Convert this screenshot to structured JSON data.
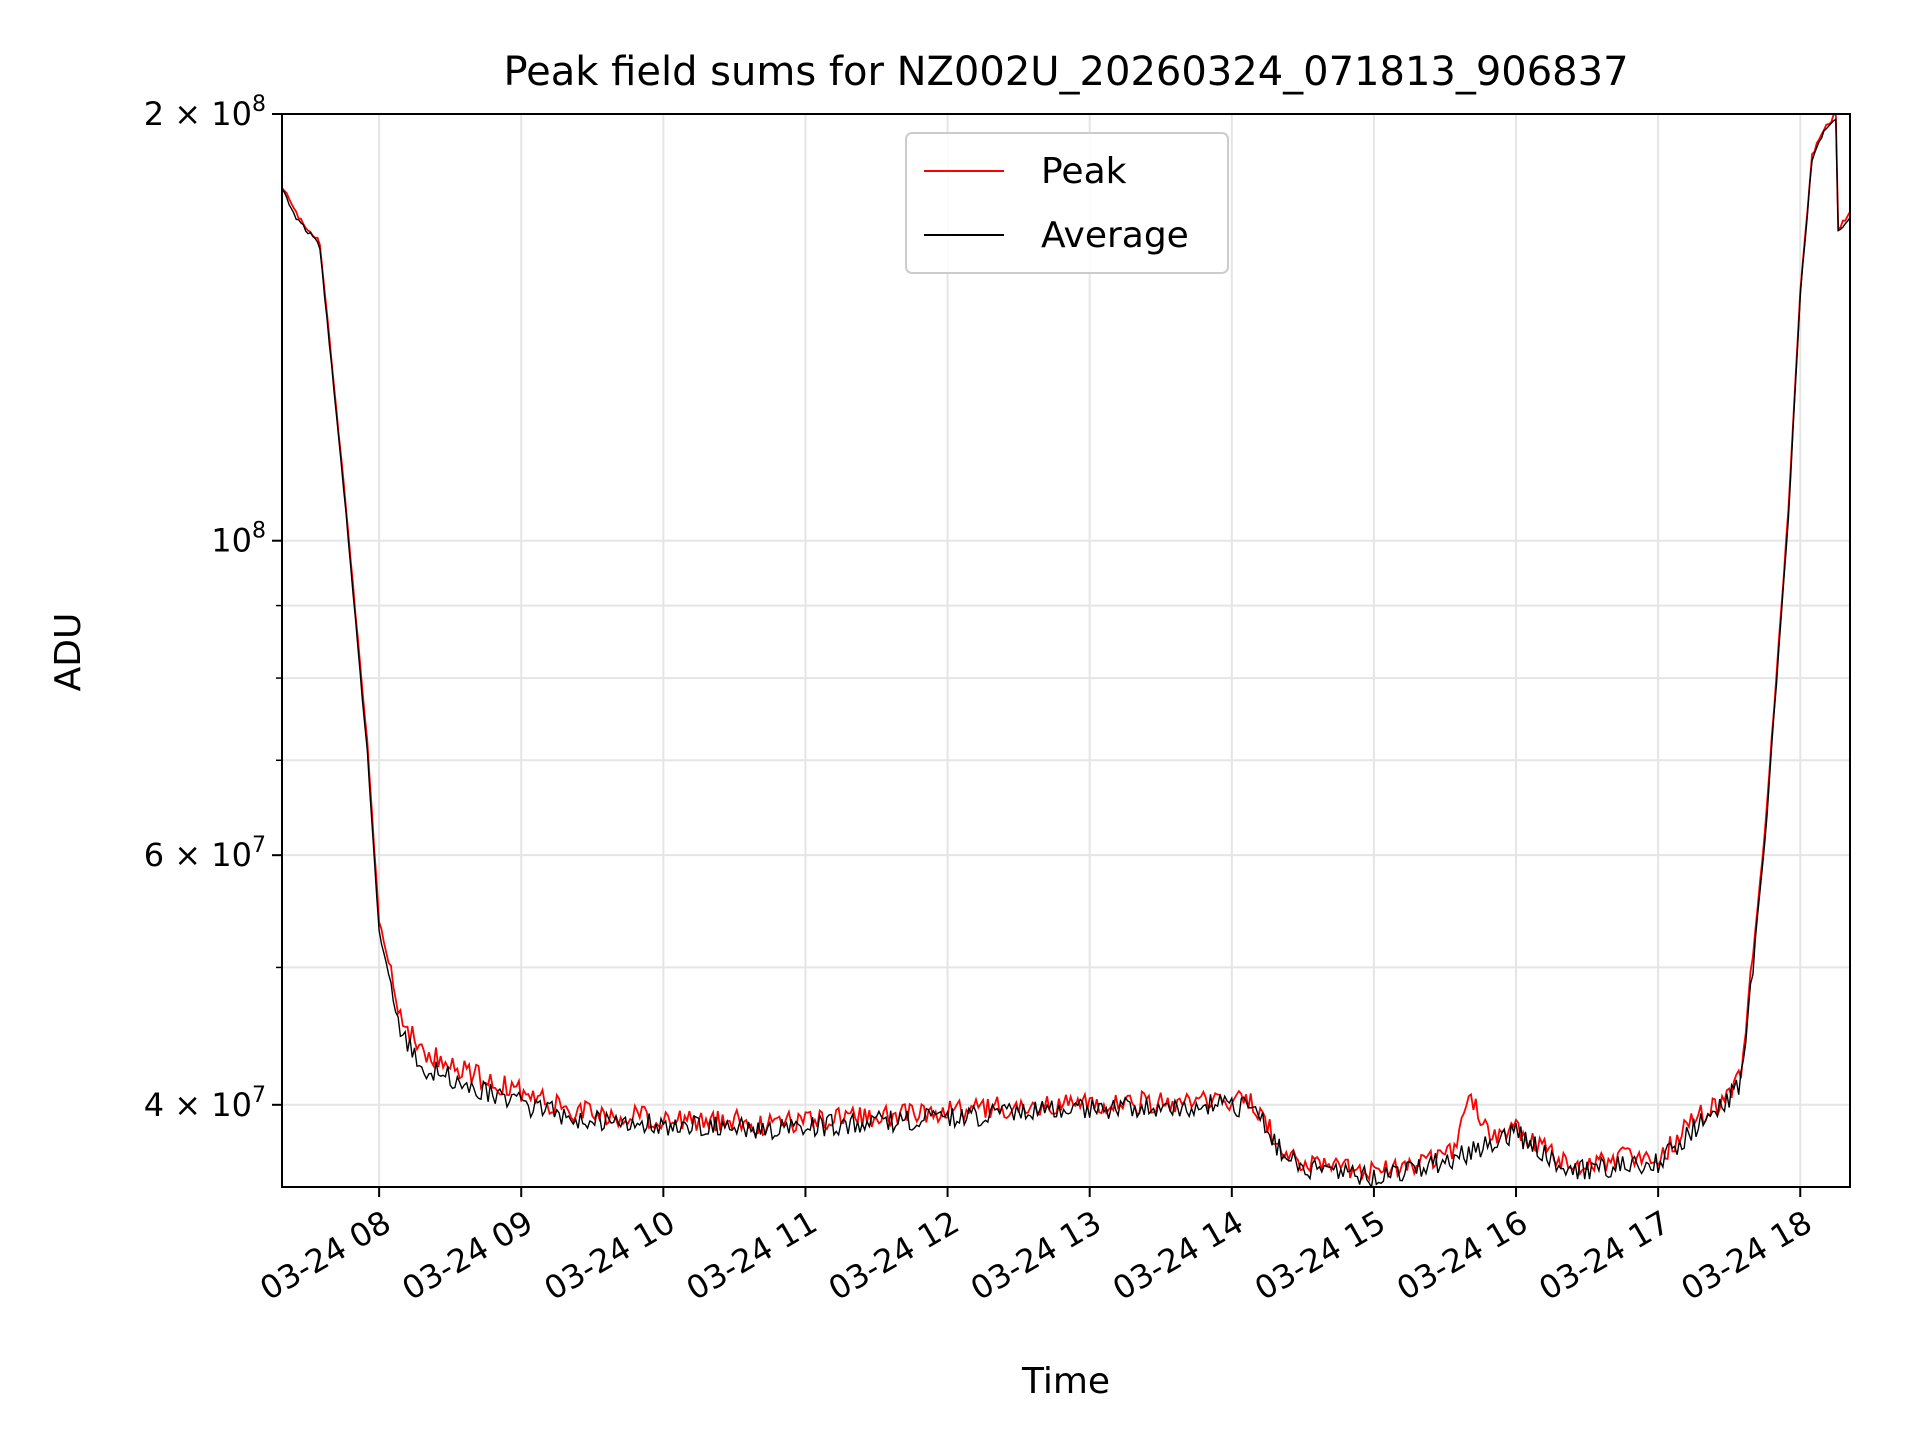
{
  "chart_data": {
    "type": "line",
    "title": "Peak field sums for NZ002U_20260324_071813_906837",
    "xlabel": "Time",
    "ylabel": "ADU",
    "yscale": "log",
    "grid": true,
    "legend_position": "top-center",
    "x_range": [
      "03-24 07:19",
      "03-24 18:21"
    ],
    "ylim": [
      35000000,
      200000000
    ],
    "x_ticks": [
      "03-24 08",
      "03-24 09",
      "03-24 10",
      "03-24 11",
      "03-24 12",
      "03-24 13",
      "03-24 14",
      "03-24 15",
      "03-24 16",
      "03-24 17",
      "03-24 18"
    ],
    "y_ticks": [
      {
        "value": 40000000,
        "label": "4 × 10^7",
        "base": "4 × 10",
        "exp": "7"
      },
      {
        "value": 60000000,
        "label": "6 × 10^7",
        "base": "6 × 10",
        "exp": "7"
      },
      {
        "value": 100000000,
        "label": "10^8",
        "base": "10",
        "exp": "8"
      },
      {
        "value": 200000000,
        "label": "2 × 10^8",
        "base": "2 × 10",
        "exp": "8"
      }
    ],
    "series": [
      {
        "name": "Peak",
        "color": "#ff0000",
        "x": [
          "03-24 07:19",
          "03-24 07:25",
          "03-24 07:34",
          "03-24 07:35",
          "03-24 07:45",
          "03-24 07:55",
          "03-24 08:00",
          "03-24 08:10",
          "03-24 08:20",
          "03-24 08:40",
          "03-24 09:00",
          "03-24 09:20",
          "03-24 09:40",
          "03-24 10:00",
          "03-24 10:30",
          "03-24 10:45",
          "03-24 11:00",
          "03-24 11:30",
          "03-24 12:00",
          "03-24 12:30",
          "03-24 13:00",
          "03-24 13:30",
          "03-24 14:00",
          "03-24 14:10",
          "03-24 14:20",
          "03-24 14:30",
          "03-24 14:45",
          "03-24 15:00",
          "03-24 15:20",
          "03-24 15:35",
          "03-24 15:40",
          "03-24 15:50",
          "03-24 16:00",
          "03-24 16:10",
          "03-24 16:20",
          "03-24 16:30",
          "03-24 16:45",
          "03-24 17:00",
          "03-24 17:15",
          "03-24 17:25",
          "03-24 17:35",
          "03-24 17:45",
          "03-24 17:55",
          "03-24 18:00",
          "03-24 18:05",
          "03-24 18:10",
          "03-24 18:15",
          "03-24 18:16",
          "03-24 18:21"
        ],
        "values": [
          178000000,
          170000000,
          163000000,
          162000000,
          110000000,
          72000000,
          54000000,
          45500000,
          43500000,
          42000000,
          40800000,
          39700000,
          39300000,
          39100000,
          39000000,
          38700000,
          39000000,
          39300000,
          39600000,
          39900000,
          40000000,
          40200000,
          40300000,
          40000000,
          37500000,
          36500000,
          36000000,
          35800000,
          36400000,
          37000000,
          41000000,
          37800000,
          38500000,
          37500000,
          36400000,
          36100000,
          36700000,
          36700000,
          39000000,
          40000000,
          42000000,
          62000000,
          105000000,
          150000000,
          187000000,
          195000000,
          200000000,
          166000000,
          170000000
        ]
      },
      {
        "name": "Average",
        "color": "#000000",
        "x": [
          "03-24 07:19",
          "03-24 07:25",
          "03-24 07:34",
          "03-24 07:35",
          "03-24 07:45",
          "03-24 07:55",
          "03-24 08:00",
          "03-24 08:10",
          "03-24 08:20",
          "03-24 08:40",
          "03-24 09:00",
          "03-24 09:20",
          "03-24 09:40",
          "03-24 10:00",
          "03-24 10:30",
          "03-24 10:45",
          "03-24 11:00",
          "03-24 11:30",
          "03-24 12:00",
          "03-24 12:30",
          "03-24 13:00",
          "03-24 13:30",
          "03-24 14:00",
          "03-24 14:10",
          "03-24 14:20",
          "03-24 14:30",
          "03-24 14:45",
          "03-24 15:00",
          "03-24 15:20",
          "03-24 15:35",
          "03-24 15:40",
          "03-24 15:50",
          "03-24 16:00",
          "03-24 16:10",
          "03-24 16:20",
          "03-24 16:30",
          "03-24 16:45",
          "03-24 17:00",
          "03-24 17:15",
          "03-24 17:25",
          "03-24 17:35",
          "03-24 17:45",
          "03-24 17:55",
          "03-24 18:00",
          "03-24 18:05",
          "03-24 18:10",
          "03-24 18:15",
          "03-24 18:16",
          "03-24 18:21"
        ],
        "values": [
          177000000,
          169000000,
          162000000,
          161000000,
          109000000,
          71000000,
          53000000,
          44500000,
          42500000,
          41200000,
          40100000,
          39200000,
          38900000,
          38700000,
          38600000,
          38300000,
          38600000,
          38900000,
          39200000,
          39500000,
          39700000,
          39900000,
          40000000,
          39700000,
          37200000,
          36200000,
          35800000,
          35600000,
          36100000,
          36700000,
          37000000,
          37500000,
          38200000,
          37200000,
          36200000,
          35900000,
          36400000,
          36400000,
          38500000,
          39500000,
          41500000,
          61000000,
          104000000,
          149000000,
          186000000,
          194000000,
          199000000,
          165000000,
          169000000
        ]
      }
    ]
  }
}
